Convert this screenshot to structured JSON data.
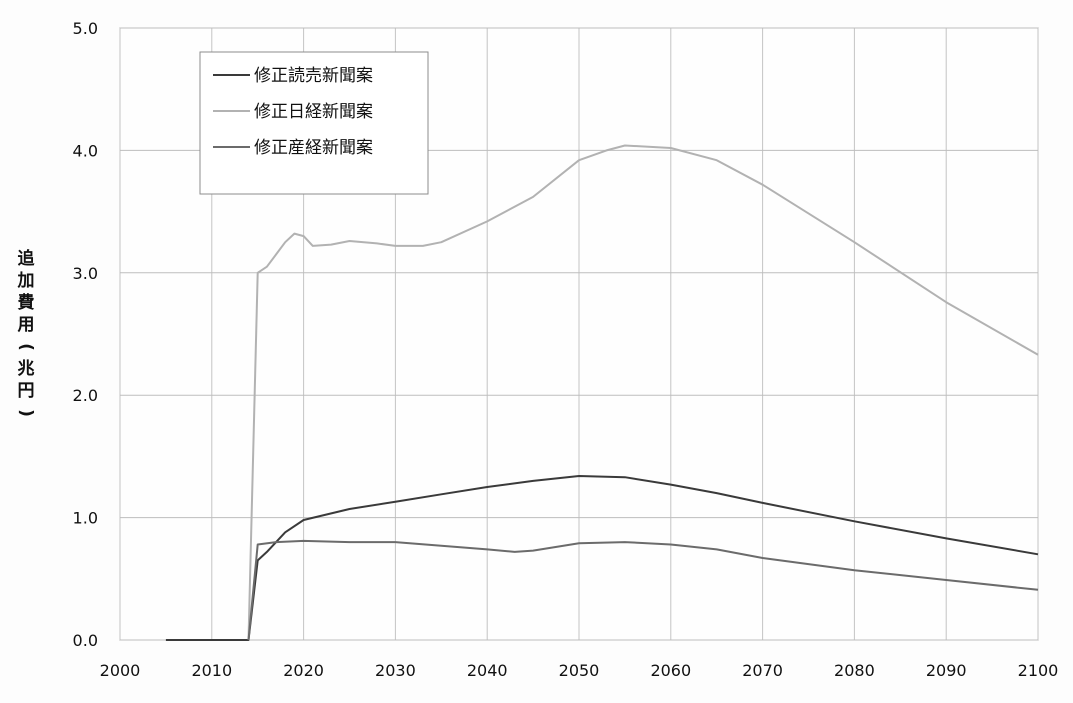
{
  "chart_data": {
    "type": "line",
    "title": "",
    "xlabel": "",
    "ylabel": "追加費用(兆円)",
    "xlim": [
      2000,
      2100
    ],
    "ylim": [
      0.0,
      5.0
    ],
    "xticks": [
      "2000",
      "2010",
      "2020",
      "2030",
      "2040",
      "2050",
      "2060",
      "2070",
      "2080",
      "2090",
      "2100"
    ],
    "yticks": [
      "0.0",
      "1.0",
      "2.0",
      "3.0",
      "4.0",
      "5.0"
    ],
    "grid": true,
    "legend_position": "top-left",
    "series": [
      {
        "name": "修正読売新聞案",
        "color": "#3a3a3a",
        "x": [
          2005,
          2014,
          2015,
          2016,
          2018,
          2020,
          2025,
          2030,
          2035,
          2040,
          2045,
          2050,
          2055,
          2060,
          2065,
          2070,
          2080,
          2090,
          2100
        ],
        "y": [
          0.0,
          0.0,
          0.65,
          0.72,
          0.88,
          0.98,
          1.07,
          1.13,
          1.19,
          1.25,
          1.3,
          1.34,
          1.33,
          1.27,
          1.2,
          1.12,
          0.97,
          0.83,
          0.7
        ]
      },
      {
        "name": "修正日経新聞案",
        "color": "#b2b2b2",
        "x": [
          2014,
          2015,
          2016,
          2017,
          2018,
          2019,
          2020,
          2021,
          2023,
          2025,
          2028,
          2030,
          2033,
          2035,
          2040,
          2045,
          2050,
          2053,
          2055,
          2060,
          2065,
          2070,
          2080,
          2090,
          2100
        ],
        "y": [
          0.0,
          3.0,
          3.05,
          3.15,
          3.25,
          3.32,
          3.3,
          3.22,
          3.23,
          3.26,
          3.24,
          3.22,
          3.22,
          3.25,
          3.42,
          3.62,
          3.92,
          4.0,
          4.04,
          4.02,
          3.92,
          3.72,
          3.25,
          2.76,
          2.33
        ]
      },
      {
        "name": "修正産経新聞案",
        "color": "#6b6b6b",
        "x": [
          2014,
          2015,
          2017,
          2020,
          2025,
          2030,
          2035,
          2040,
          2043,
          2045,
          2050,
          2055,
          2060,
          2065,
          2070,
          2080,
          2090,
          2100
        ],
        "y": [
          0.0,
          0.78,
          0.8,
          0.81,
          0.8,
          0.8,
          0.77,
          0.74,
          0.72,
          0.73,
          0.79,
          0.8,
          0.78,
          0.74,
          0.67,
          0.57,
          0.49,
          0.41
        ]
      }
    ]
  }
}
